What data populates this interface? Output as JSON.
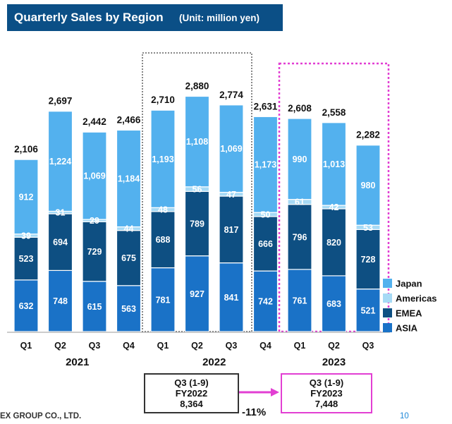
{
  "page": {
    "title": "Quarterly Sales by Region",
    "unit": "(Unit: million yen)",
    "footer_company": "EX GROUP CO., LTD.",
    "page_number": "10"
  },
  "comparison": {
    "left": {
      "period": "Q3 (1-9)",
      "fy": "FY2022",
      "value": "8,364"
    },
    "right": {
      "period": "Q3 (1-9)",
      "fy": "FY2023",
      "value": "7,448"
    },
    "change": "-11%"
  },
  "colors": {
    "japan": "#53b1ee",
    "americas": "#a6daf5",
    "emea": "#0e4f82",
    "asia": "#1a72c7",
    "title_bg": "#0b4f86",
    "highlight_2022": "#888888",
    "highlight_2023": "#e23fd3",
    "arrow": "#e23fd3"
  },
  "chart_data": {
    "type": "bar",
    "stacked": true,
    "categories": [
      "Q1",
      "Q2",
      "Q3",
      "Q4",
      "Q1",
      "Q2",
      "Q3",
      "Q4",
      "Q1",
      "Q2",
      "Q3"
    ],
    "year_groups": [
      {
        "label": "2021",
        "from": 0,
        "to": 3
      },
      {
        "label": "2022",
        "from": 4,
        "to": 7
      },
      {
        "label": "2023",
        "from": 8,
        "to": 10
      }
    ],
    "series": [
      {
        "name": "ASIA",
        "values": [
          632,
          748,
          615,
          563,
          781,
          927,
          841,
          742,
          761,
          683,
          521
        ]
      },
      {
        "name": "EMEA",
        "values": [
          523,
          694,
          729,
          675,
          688,
          789,
          817,
          666,
          796,
          820,
          728
        ]
      },
      {
        "name": "Americas",
        "values": [
          39,
          31,
          29,
          44,
          48,
          56,
          47,
          50,
          61,
          42,
          53
        ]
      },
      {
        "name": "Japan",
        "values": [
          912,
          1224,
          1069,
          1184,
          1193,
          1108,
          1069,
          1173,
          990,
          1013,
          980
        ]
      }
    ],
    "totals": [
      "2,106",
      "2,697",
      "2,442",
      "2,466",
      "2,710",
      "2,880",
      "2,774",
      "2,631",
      "2,608",
      "2,558",
      "2,282"
    ],
    "legend": [
      "Japan",
      "Americas",
      "EMEA",
      "ASIA"
    ],
    "legend_position": "right",
    "highlight_ranges": [
      {
        "from": 4,
        "to": 6,
        "style": "dotted"
      },
      {
        "from": 8,
        "to": 10,
        "style": "dotted"
      }
    ],
    "ylim": [
      0,
      3000
    ],
    "grid": false
  }
}
